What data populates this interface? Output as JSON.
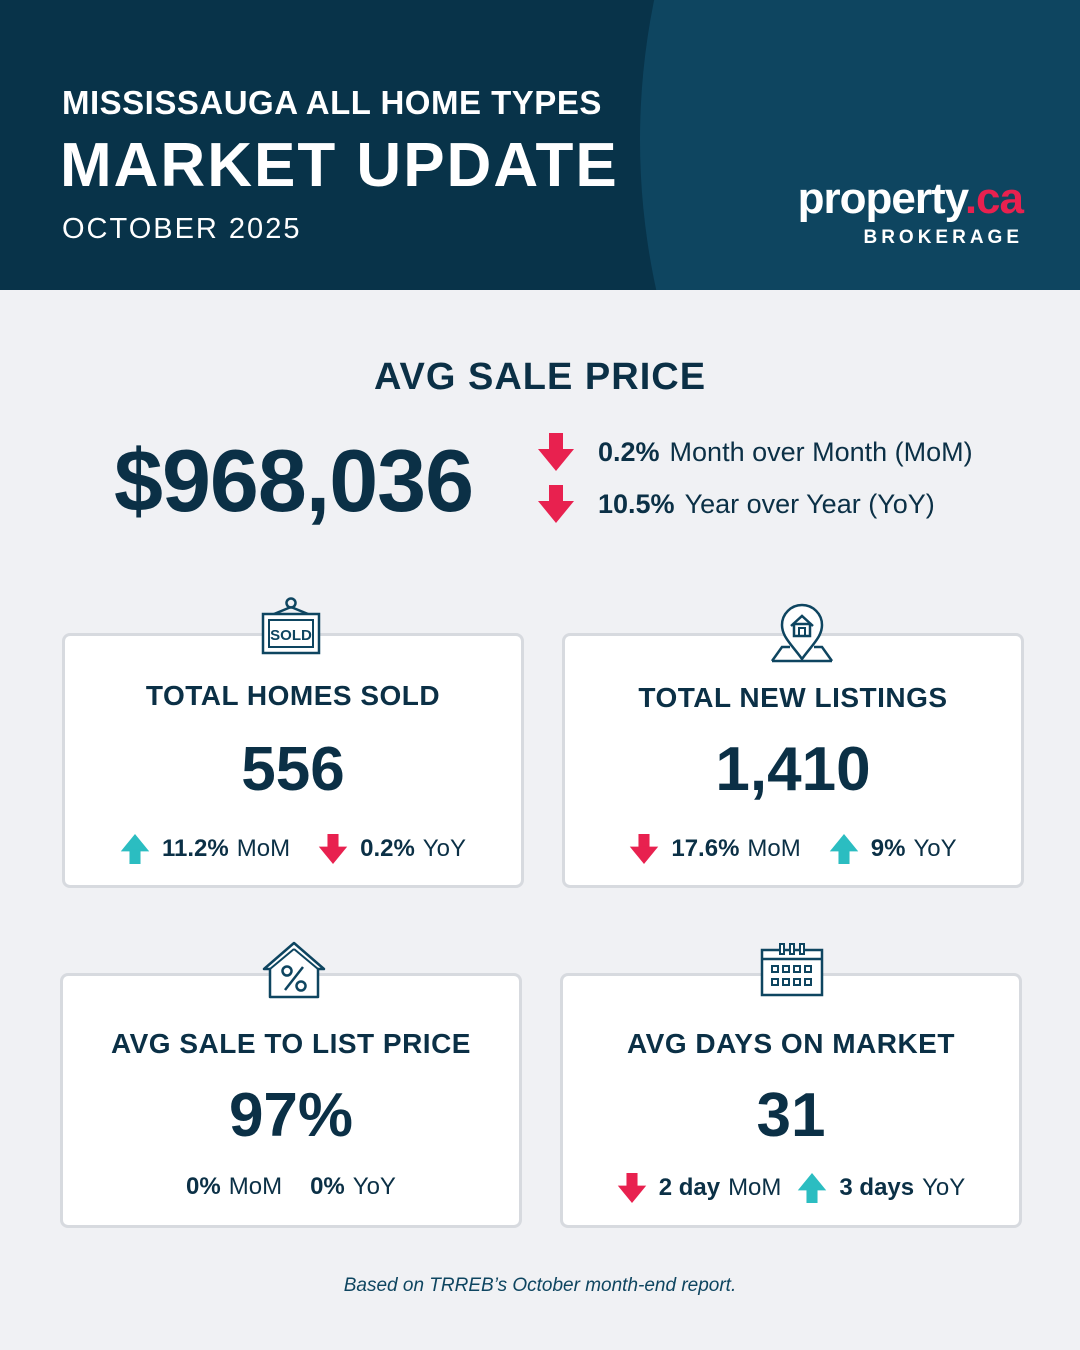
{
  "header": {
    "subtitle": "MISSISSAUGA ALL HOME TYPES",
    "title": "MARKET UPDATE",
    "date": "OCTOBER 2025",
    "logo_word": "property",
    "logo_dot": ".",
    "logo_ca": "ca",
    "logo_sub": "BROKERAGE"
  },
  "avg_sale_price": {
    "title": "AVG SALE PRICE",
    "value": "$968,036",
    "mom_pct": "0.2%",
    "mom_label": "Month over Month (MoM)",
    "mom_dir": "down",
    "yoy_pct": "10.5%",
    "yoy_label": "Year over Year (YoY)",
    "yoy_dir": "down"
  },
  "cards": {
    "homes_sold": {
      "icon": "sold-sign-icon",
      "title": "TOTAL HOMES SOLD",
      "value": "556",
      "mom": "11.2%",
      "mom_label": "MoM",
      "mom_dir": "up",
      "yoy": "0.2%",
      "yoy_label": "YoY",
      "yoy_dir": "down"
    },
    "new_listings": {
      "icon": "house-pin-icon",
      "title": "TOTAL NEW LISTINGS",
      "value": "1,410",
      "mom": "17.6%",
      "mom_label": "MoM",
      "mom_dir": "down",
      "yoy": "9%",
      "yoy_label": "YoY",
      "yoy_dir": "up"
    },
    "sale_to_list": {
      "icon": "house-percent-icon",
      "title": "AVG SALE TO LIST PRICE",
      "value": "97%",
      "mom": "0%",
      "mom_label": "MoM",
      "mom_dir": "none",
      "yoy": "0%",
      "yoy_label": "YoY",
      "yoy_dir": "none"
    },
    "days_on_market": {
      "icon": "calendar-icon",
      "title": "AVG DAYS ON MARKET",
      "value": "31",
      "mom": "2 day",
      "mom_label": "MoM",
      "mom_dir": "down",
      "yoy": "3 days",
      "yoy_label": "YoY",
      "yoy_dir": "up"
    }
  },
  "colors": {
    "navy": "#083349",
    "arc": "#0e4560",
    "down": "#e8214f",
    "up": "#2bbdc1",
    "text": "#0b3046"
  },
  "footnote": "Based on TRREB’s October month-end report."
}
